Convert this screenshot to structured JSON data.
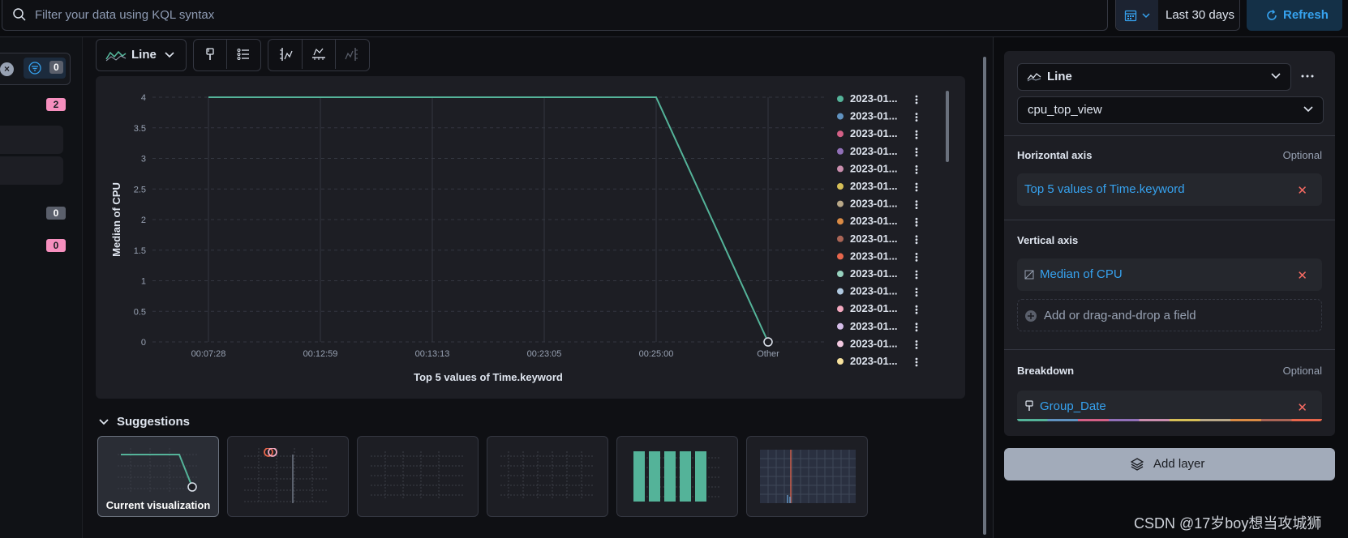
{
  "query_bar": {
    "placeholder": "Filter your data using KQL syntax"
  },
  "date_picker": {
    "label": "Last 30 days"
  },
  "refresh": {
    "label": "Refresh"
  },
  "left_strip": {
    "filter_count": "0",
    "badge_2": "2",
    "badge_0a": "0",
    "badge_0b": "0"
  },
  "toolbar": {
    "chart_type_label": "Line"
  },
  "chart_data": {
    "type": "line",
    "x_categories": [
      "00:07:28",
      "00:12:59",
      "00:13:13",
      "00:23:05",
      "00:25:00",
      "Other"
    ],
    "series": [
      {
        "values": [
          4,
          4,
          4,
          4,
          4,
          0
        ]
      }
    ],
    "xlabel": "Top 5 values of Time.keyword",
    "ylabel": "Median of CPU",
    "ylim": [
      0,
      4
    ],
    "y_ticks": [
      "0",
      "0.5",
      "1",
      "1.5",
      "2",
      "2.5",
      "3",
      "3.5",
      "4"
    ],
    "grid": true,
    "legend_position": "right",
    "legend": [
      {
        "label": "2023-01...",
        "color": "#54b399"
      },
      {
        "label": "2023-01...",
        "color": "#6092c0"
      },
      {
        "label": "2023-01...",
        "color": "#d36086"
      },
      {
        "label": "2023-01...",
        "color": "#9170b8"
      },
      {
        "label": "2023-01...",
        "color": "#ca8eae"
      },
      {
        "label": "2023-01...",
        "color": "#d6bf57"
      },
      {
        "label": "2023-01...",
        "color": "#b9a888"
      },
      {
        "label": "2023-01...",
        "color": "#da8b45"
      },
      {
        "label": "2023-01...",
        "color": "#aa6556"
      },
      {
        "label": "2023-01...",
        "color": "#e7664c"
      },
      {
        "label": "2023-01...",
        "color": "#98d2bf"
      },
      {
        "label": "2023-01...",
        "color": "#b0c9e0"
      },
      {
        "label": "2023-01...",
        "color": "#f4a9c0"
      },
      {
        "label": "2023-01...",
        "color": "#d5bde8"
      },
      {
        "label": "2023-01...",
        "color": "#f2c9e0"
      },
      {
        "label": "2023-01...",
        "color": "#f7e29e"
      }
    ],
    "line_color": "#54b399"
  },
  "suggestions": {
    "title": "Suggestions",
    "current_caption": "Current visualization"
  },
  "config": {
    "chart_type": "Line",
    "data_view": "cpu_top_view",
    "horizontal_axis": {
      "title": "Horizontal axis",
      "optional": "Optional",
      "field": "Top 5 values of Time.keyword"
    },
    "vertical_axis": {
      "title": "Vertical axis",
      "field": "Median of CPU",
      "add_placeholder": "Add or drag-and-drop a field"
    },
    "breakdown": {
      "title": "Breakdown",
      "optional": "Optional",
      "field": "Group_Date"
    },
    "add_layer": "Add layer"
  },
  "watermark": "CSDN @17岁boy想当攻城狮"
}
